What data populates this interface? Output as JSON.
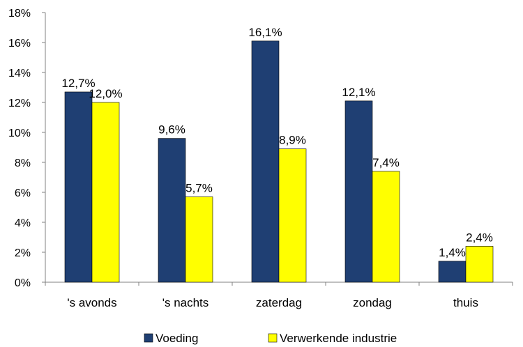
{
  "chart_data": {
    "type": "bar",
    "categories": [
      "'s avonds",
      "'s nachts",
      "zaterdag",
      "zondag",
      "thuis"
    ],
    "series": [
      {
        "name": "Voeding",
        "color": "#1F3F73",
        "values": [
          12.7,
          9.6,
          16.1,
          12.1,
          1.4
        ],
        "labels": [
          "12,7%",
          "9,6%",
          "16,1%",
          "12,1%",
          "1,4%"
        ]
      },
      {
        "name": "Verwerkende industrie",
        "color": "#FFFF00",
        "values": [
          12.0,
          5.7,
          8.9,
          7.4,
          2.4
        ],
        "labels": [
          "12,0%",
          "5,7%",
          "8,9%",
          "7,4%",
          "2,4%"
        ]
      }
    ],
    "ylim": [
      0,
      18
    ],
    "yticks": [
      {
        "value": 0,
        "label": "0%"
      },
      {
        "value": 2,
        "label": "2%"
      },
      {
        "value": 4,
        "label": "4%"
      },
      {
        "value": 6,
        "label": "6%"
      },
      {
        "value": 8,
        "label": "8%"
      },
      {
        "value": 10,
        "label": "10%"
      },
      {
        "value": 12,
        "label": "12%"
      },
      {
        "value": 14,
        "label": "14%"
      },
      {
        "value": 16,
        "label": "16%"
      },
      {
        "value": 18,
        "label": "18%"
      }
    ],
    "grid": false,
    "legend_position": "bottom"
  }
}
